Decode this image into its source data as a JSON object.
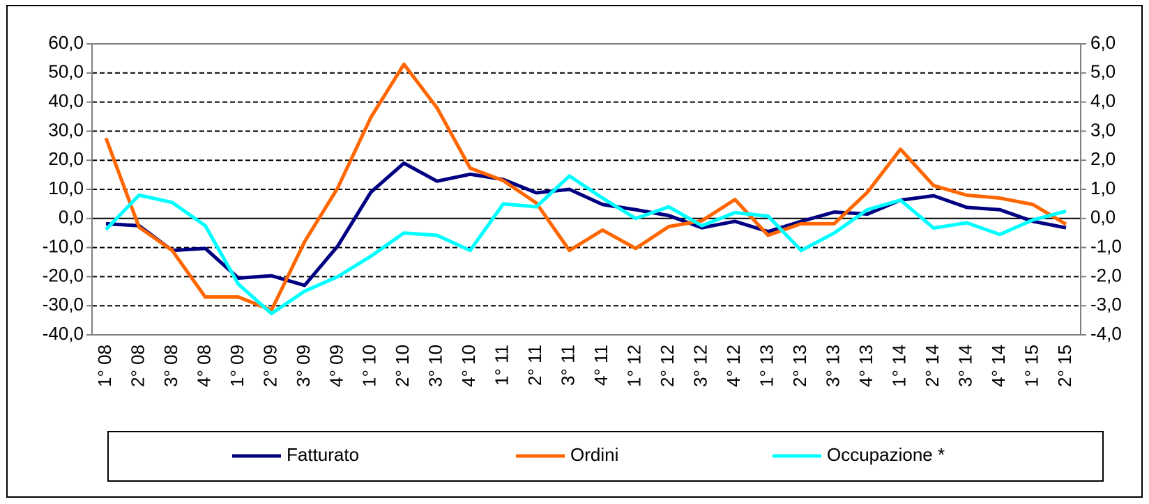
{
  "chart_data": {
    "type": "line",
    "categories": [
      "1° 08",
      "2° 08",
      "3° 08",
      "4° 08",
      "1° 09",
      "2° 09",
      "3° 09",
      "4° 09",
      "1° 10",
      "2° 10",
      "3° 10",
      "4° 10",
      "1° 11",
      "2° 11",
      "3° 11",
      "4° 11",
      "1° 12",
      "2° 12",
      "3° 12",
      "4° 12",
      "1° 13",
      "2° 13",
      "3° 13",
      "4° 13",
      "1° 14",
      "2° 14",
      "3° 14",
      "4° 14",
      "1° 15",
      "2° 15"
    ],
    "series": [
      {
        "name": "Fatturato",
        "color": "#000080",
        "values": [
          -1.8,
          -2.5,
          -11,
          -10.3,
          -20.5,
          -19.7,
          -23,
          -9.5,
          9,
          19,
          12.8,
          15.2,
          13.4,
          8.8,
          10,
          4.8,
          3,
          1,
          -3.2,
          -1,
          -4.5,
          -1,
          2.2,
          1.5,
          6.3,
          7.8,
          3.8,
          3,
          -1,
          -3.2
        ]
      },
      {
        "name": "Ordini",
        "color": "#ff6600",
        "values": [
          27.6,
          -3,
          -11,
          -27,
          -27,
          -31.5,
          -8,
          10.5,
          34.7,
          53,
          38,
          17.3,
          13,
          5.3,
          -11,
          -4,
          -10.3,
          -2.8,
          -0.8,
          6.5,
          -5.8,
          -1.8,
          -1.8,
          9,
          23.8,
          11.3,
          8,
          7,
          4.8,
          -2
        ]
      },
      {
        "name": "Occupazione *",
        "color": "#00ffff",
        "axis": "y2",
        "values": [
          -0.38,
          0.8,
          0.55,
          -0.25,
          -2.26,
          -3.27,
          -2.5,
          -2,
          -1.3,
          -0.5,
          -0.58,
          -1.1,
          0.5,
          0.4,
          1.46,
          0.7,
          0,
          0.4,
          -0.25,
          0.2,
          0.08,
          -1.1,
          -0.5,
          0.3,
          0.63,
          -0.33,
          -0.15,
          -0.55,
          -0.05,
          0.25
        ]
      }
    ],
    "ylim": [
      -40,
      60
    ],
    "yticks": [
      {
        "value": -40,
        "label": "-40,0"
      },
      {
        "value": -30,
        "label": "-30,0"
      },
      {
        "value": -20,
        "label": "-20,0"
      },
      {
        "value": -10,
        "label": "-10,0"
      },
      {
        "value": 0,
        "label": "0,0"
      },
      {
        "value": 10,
        "label": "10,0"
      },
      {
        "value": 20,
        "label": "20,0"
      },
      {
        "value": 30,
        "label": "30,0"
      },
      {
        "value": 40,
        "label": "40,0"
      },
      {
        "value": 50,
        "label": "50,0"
      },
      {
        "value": 60,
        "label": "60,0"
      }
    ],
    "y2lim": [
      -4,
      6
    ],
    "y2ticks": [
      {
        "value": -4,
        "label": "-4,0"
      },
      {
        "value": -3,
        "label": "-3,0"
      },
      {
        "value": -2,
        "label": "-2,0"
      },
      {
        "value": -1,
        "label": "-1,0"
      },
      {
        "value": 0,
        "label": "0,0"
      },
      {
        "value": 1,
        "label": "1,0"
      },
      {
        "value": 2,
        "label": "2,0"
      },
      {
        "value": 3,
        "label": "3,0"
      },
      {
        "value": 4,
        "label": "4,0"
      },
      {
        "value": 5,
        "label": "5,0"
      },
      {
        "value": 6,
        "label": "6,0"
      }
    ],
    "grid": true,
    "legend": "bottom"
  }
}
